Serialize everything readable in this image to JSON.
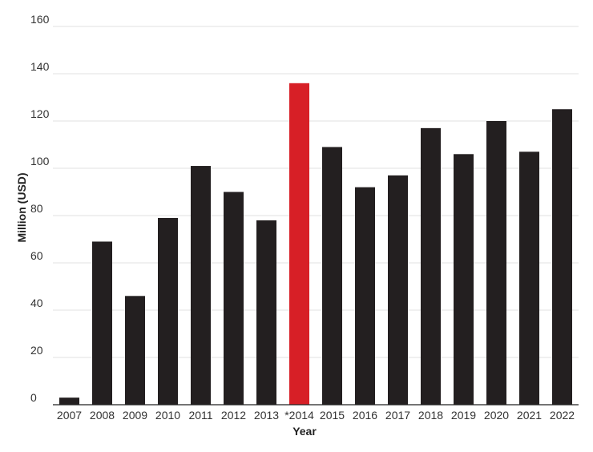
{
  "chart_data": {
    "type": "bar",
    "title": "",
    "xlabel": "Year",
    "ylabel": "Million (USD)",
    "ylim": [
      0,
      160
    ],
    "yticks": [
      0,
      20,
      40,
      60,
      80,
      100,
      120,
      140,
      160
    ],
    "grid": true,
    "legend": "none",
    "categories": [
      "2007",
      "2008",
      "2009",
      "2010",
      "2011",
      "2012",
      "2013",
      "*2014",
      "2015",
      "2016",
      "2017",
      "2018",
      "2019",
      "2020",
      "2021",
      "2022"
    ],
    "values": [
      3,
      69,
      46,
      79,
      101,
      90,
      78,
      136,
      109,
      92,
      97,
      117,
      106,
      120,
      107,
      125
    ],
    "colors": {
      "default": "#231f20",
      "highlight": "#d71f26"
    },
    "highlight_categories": [
      "*2014"
    ]
  }
}
